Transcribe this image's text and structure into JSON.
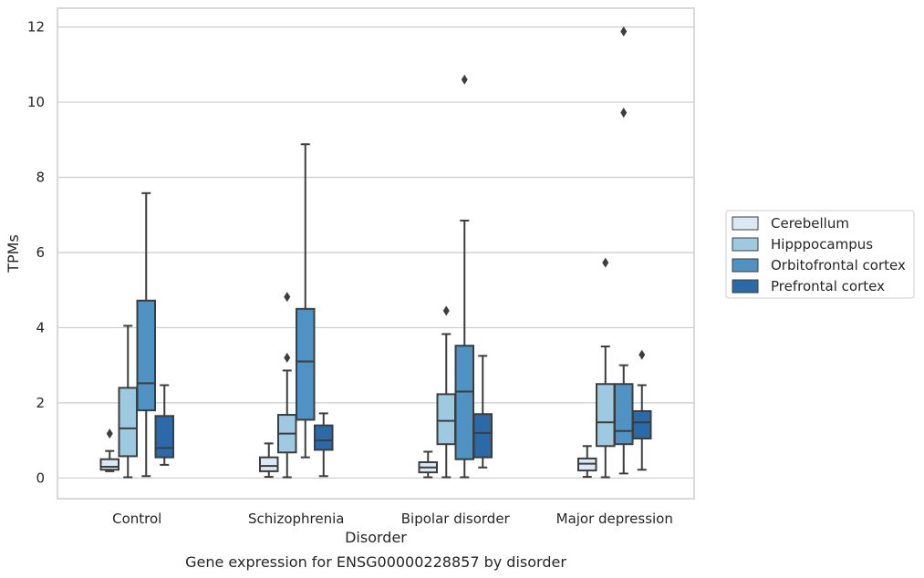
{
  "chart_data": {
    "type": "box",
    "caption": "Gene expression for ENSG00000228857 by disorder",
    "xlabel": "Disorder",
    "ylabel": "TPMs",
    "ylim": [
      -0.55,
      12.5
    ],
    "yticks": [
      0,
      2,
      4,
      6,
      8,
      10,
      12
    ],
    "grid": "horizontal",
    "legend_position": "right",
    "categories": [
      "Control",
      "Schizophrenia",
      "Bipolar disorder",
      "Major depression"
    ],
    "series": [
      {
        "name": "Cerebellum",
        "color": "#dbe9f6",
        "boxes": [
          {
            "whisker_low": 0.18,
            "q1": 0.22,
            "median": 0.3,
            "q3": 0.5,
            "whisker_high": 0.72,
            "outliers": [
              1.18
            ]
          },
          {
            "whisker_low": 0.03,
            "q1": 0.18,
            "median": 0.32,
            "q3": 0.55,
            "whisker_high": 0.92,
            "outliers": []
          },
          {
            "whisker_low": 0.02,
            "q1": 0.15,
            "median": 0.28,
            "q3": 0.42,
            "whisker_high": 0.7,
            "outliers": []
          },
          {
            "whisker_low": 0.03,
            "q1": 0.2,
            "median": 0.38,
            "q3": 0.52,
            "whisker_high": 0.85,
            "outliers": []
          }
        ]
      },
      {
        "name": "Hipppocampus",
        "color": "#9ecae1",
        "boxes": [
          {
            "whisker_low": 0.02,
            "q1": 0.58,
            "median": 1.32,
            "q3": 2.4,
            "whisker_high": 4.05,
            "outliers": []
          },
          {
            "whisker_low": 0.02,
            "q1": 0.68,
            "median": 1.18,
            "q3": 1.68,
            "whisker_high": 2.86,
            "outliers": [
              3.2,
              4.82
            ]
          },
          {
            "whisker_low": 0.02,
            "q1": 0.9,
            "median": 1.52,
            "q3": 2.23,
            "whisker_high": 3.83,
            "outliers": [
              4.45
            ]
          },
          {
            "whisker_low": 0.02,
            "q1": 0.85,
            "median": 1.48,
            "q3": 2.5,
            "whisker_high": 3.5,
            "outliers": [
              5.73
            ]
          }
        ]
      },
      {
        "name": "Orbitofrontal cortex",
        "color": "#4e93c4",
        "boxes": [
          {
            "whisker_low": 0.05,
            "q1": 1.8,
            "median": 2.52,
            "q3": 4.72,
            "whisker_high": 7.58,
            "outliers": []
          },
          {
            "whisker_low": 0.55,
            "q1": 1.55,
            "median": 3.1,
            "q3": 4.5,
            "whisker_high": 8.88,
            "outliers": []
          },
          {
            "whisker_low": 0.02,
            "q1": 0.5,
            "median": 2.3,
            "q3": 3.52,
            "whisker_high": 6.85,
            "outliers": [
              10.6
            ]
          },
          {
            "whisker_low": 0.12,
            "q1": 0.9,
            "median": 1.25,
            "q3": 2.5,
            "whisker_high": 3.0,
            "outliers": [
              9.72,
              11.88
            ]
          }
        ]
      },
      {
        "name": "Prefrontal cortex",
        "color": "#2b6aa9",
        "boxes": [
          {
            "whisker_low": 0.35,
            "q1": 0.55,
            "median": 0.8,
            "q3": 1.65,
            "whisker_high": 2.47,
            "outliers": []
          },
          {
            "whisker_low": 0.05,
            "q1": 0.75,
            "median": 1.0,
            "q3": 1.4,
            "whisker_high": 1.72,
            "outliers": []
          },
          {
            "whisker_low": 0.28,
            "q1": 0.55,
            "median": 1.2,
            "q3": 1.7,
            "whisker_high": 3.25,
            "outliers": []
          },
          {
            "whisker_low": 0.22,
            "q1": 1.05,
            "median": 1.48,
            "q3": 1.78,
            "whisker_high": 2.47,
            "outliers": [
              3.28
            ]
          }
        ]
      }
    ]
  }
}
